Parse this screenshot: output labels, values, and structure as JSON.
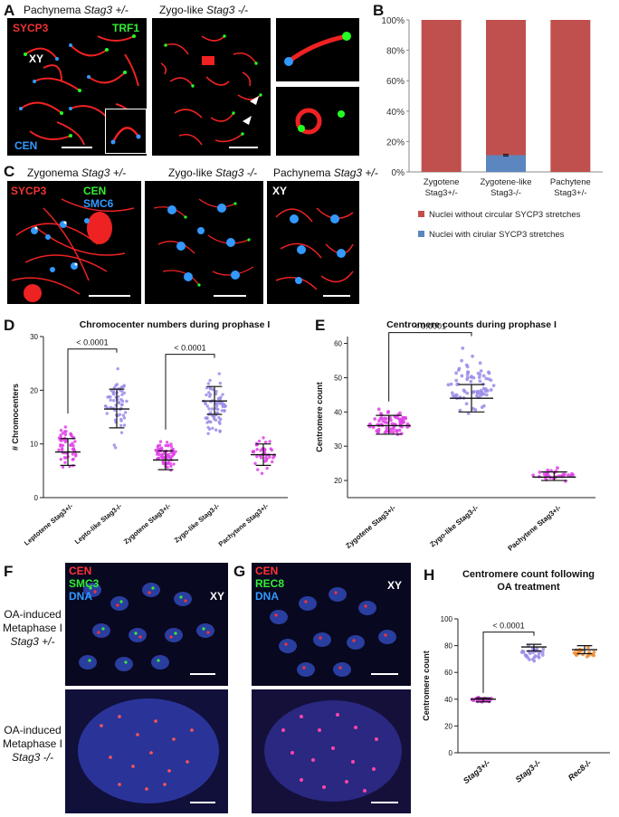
{
  "panels": {
    "A": {
      "letter": "A",
      "img1_title": "Pachynema ",
      "img1_title_italic": "Stag3 +/-",
      "img2_title": "Zygo-like ",
      "img2_title_italic": "Stag3 -/-",
      "labels": {
        "sycp3": "SYCP3",
        "trf1": "TRF1",
        "xy": "XY",
        "cen": "CEN"
      }
    },
    "B": {
      "letter": "B"
    },
    "C": {
      "letter": "C",
      "img1_title": "Zygonema ",
      "img1_title_italic": "Stag3 +/-",
      "img2_title": "Zygo-like ",
      "img2_title_italic": "Stag3 -/-",
      "img3_title": "Pachynema ",
      "img3_title_italic": "Stag3 +/-",
      "labels": {
        "sycp3": "SYCP3",
        "cen": "CEN",
        "smc6": "SMC6",
        "xy": "XY"
      }
    },
    "D": {
      "letter": "D"
    },
    "E": {
      "letter": "E"
    },
    "F": {
      "letter": "F",
      "labels": {
        "cen": "CEN",
        "smc3": "SMC3",
        "dna": "DNA",
        "xy": "XY"
      },
      "side_top": [
        "OA-induced",
        "Metaphase I",
        "Stag3 +/-"
      ],
      "side_bottom": [
        "OA-induced",
        "Metaphase I",
        "Stag3 -/-"
      ]
    },
    "G": {
      "letter": "G",
      "labels": {
        "cen": "CEN",
        "rec8": "REC8",
        "dna": "DNA",
        "xy": "XY"
      }
    },
    "H": {
      "letter": "H"
    }
  },
  "chart_data": [
    {
      "panel": "B",
      "type": "bar",
      "stacked": true,
      "categories": [
        "Zygotene\nStag3+/-",
        "Zygotene-like\nStag3-/-",
        "Pachytene\nStag3+/-"
      ],
      "series": [
        {
          "name": "Nuclei with cirular SYCP3 stretches",
          "values": [
            0,
            11,
            0
          ],
          "color": "#5b86c0"
        },
        {
          "name": "Nuclei without circular SYCP3 stretches",
          "values": [
            100,
            89,
            100
          ],
          "color": "#c0504d"
        }
      ],
      "yticks": [
        "0%",
        "20%",
        "40%",
        "60%",
        "80%",
        "100%"
      ],
      "ylim": [
        0,
        100
      ],
      "legend": "bottom"
    },
    {
      "panel": "D",
      "type": "scatter",
      "title": "Chromocenter numbers during prophase I",
      "ylabel": "# Chromocenters",
      "ylim": [
        0,
        30
      ],
      "yticks": [
        0,
        10,
        20,
        30
      ],
      "categories": [
        "Leptotene Stag3+/-",
        "Lepto-like Stag3-/-",
        "Zygotene Stag3+/-",
        "Zygo-like Stag3-/-",
        "Pachytene Stag3+/-"
      ],
      "colors": [
        "#e040e8",
        "#9a8ce8",
        "#e040e8",
        "#9a8ce8",
        "#e040e8"
      ],
      "mean": [
        8.5,
        16.5,
        7,
        18,
        8
      ],
      "sd_low": [
        6,
        13,
        5.2,
        15.5,
        6
      ],
      "sd_high": [
        11,
        20.2,
        8.7,
        20.7,
        10
      ],
      "range_low": [
        4,
        9,
        4,
        9,
        4
      ],
      "range_high": [
        15,
        26,
        12,
        25,
        12
      ],
      "n": [
        55,
        60,
        70,
        75,
        40
      ],
      "comparisons": [
        {
          "from": 0,
          "to": 1,
          "label": "< 0.0001"
        },
        {
          "from": 2,
          "to": 3,
          "label": "< 0.0001"
        }
      ]
    },
    {
      "panel": "E",
      "type": "scatter",
      "title": "Centromere counts during prophase I",
      "ylabel": "Centromere count",
      "ylim": [
        15,
        62
      ],
      "yticks": [
        20,
        30,
        40,
        50,
        60
      ],
      "categories": [
        "Zygotene Stag3+/-",
        "Zygo-like Stag3-/-",
        "Pachytene Stag3+/-"
      ],
      "colors": [
        "#e040e8",
        "#9a8ce8",
        "#e040e8"
      ],
      "mean": [
        36,
        44,
        21
      ],
      "sd_low": [
        33.5,
        40,
        20
      ],
      "sd_high": [
        39,
        48,
        22.5
      ],
      "range_low": [
        31,
        36,
        19
      ],
      "range_high": [
        42,
        60,
        24
      ],
      "n": [
        70,
        75,
        30
      ],
      "comparisons": [
        {
          "from": 0,
          "to": 1,
          "label": "< 0.0001"
        }
      ]
    },
    {
      "panel": "H",
      "type": "scatter",
      "title": "Centromere count following\nOA treatment",
      "ylabel": "Centromere count",
      "ylim": [
        0,
        100
      ],
      "yticks": [
        0,
        20,
        40,
        60,
        80,
        100
      ],
      "categories": [
        "Stag3+/-",
        "Stag3-/-",
        "Rec8-/-"
      ],
      "colors": [
        "#e040e8",
        "#9a8ce8",
        "#f08a30"
      ],
      "mean": [
        40,
        79,
        77
      ],
      "sd_low": [
        38,
        76,
        74
      ],
      "sd_high": [
        41,
        81,
        80
      ],
      "range_low": [
        37,
        68,
        68
      ],
      "range_high": [
        42,
        82,
        81
      ],
      "n": [
        30,
        30,
        20
      ],
      "comparisons": [
        {
          "from": 0,
          "to": 1,
          "label": "< 0.0001"
        }
      ]
    }
  ]
}
